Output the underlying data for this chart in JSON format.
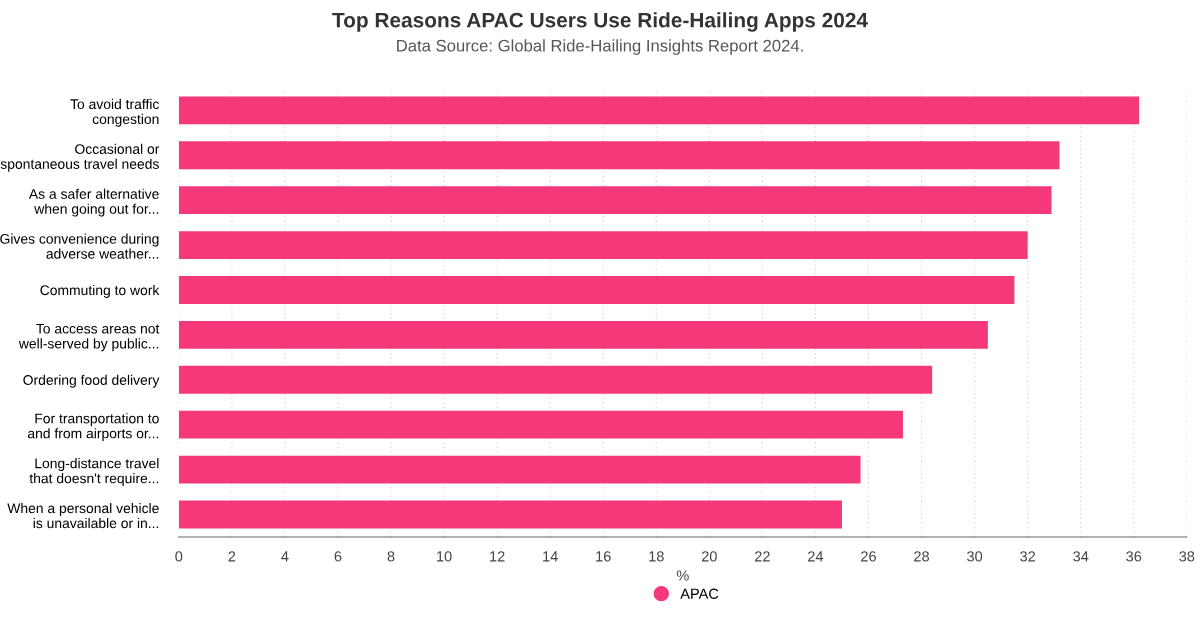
{
  "chart_data": {
    "type": "bar",
    "orientation": "horizontal",
    "title": "Top Reasons APAC Users Use Ride-Hailing Apps 2024",
    "subtitle": "Data Source: Global Ride-Hailing Insights Report 2024.",
    "xlabel": "%",
    "categories": [
      "To avoid traffic\ncongestion",
      "Occasional or\nspontaneous travel needs",
      "As a safer alternative\nwhen going out for...",
      "Gives convenience during\nadverse weather...",
      "Commuting to work",
      "To access areas not\nwell-served by public...",
      "Ordering food delivery",
      "For transportation to\nand from airports or...",
      "Long-distance travel\nthat doesn't require...",
      "When a personal vehicle\nis unavailable or in..."
    ],
    "series": [
      {
        "name": "APAC",
        "color": "#f4387a",
        "values": [
          36.2,
          33.2,
          32.9,
          32.0,
          31.5,
          30.5,
          28.4,
          27.3,
          25.7,
          25.0
        ]
      }
    ],
    "xlim": [
      0,
      38
    ],
    "xticks": [
      0,
      2,
      4,
      6,
      8,
      10,
      12,
      14,
      16,
      18,
      20,
      22,
      24,
      26,
      28,
      30,
      32,
      34,
      36,
      38
    ],
    "grid": "x",
    "legend": "bottom"
  }
}
